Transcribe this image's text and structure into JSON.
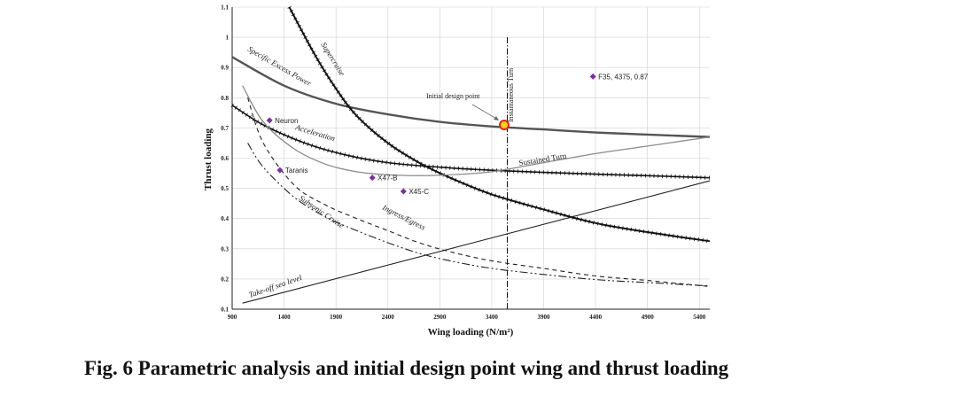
{
  "caption": "Fig. 6  Parametric analysis and initial design point wing and thrust loading",
  "colors": {
    "axis": "#222222",
    "grid": "#d0d0d0",
    "marker": "#7b2fa0",
    "design_fill": "#f5d020",
    "design_ring": "#e0241b"
  },
  "chart_data": {
    "type": "line",
    "title": "",
    "xlabel": "Wing loading (N/m²)",
    "ylabel": "Thrust loading",
    "xlim": [
      900,
      5500
    ],
    "ylim": [
      0.1,
      1.1
    ],
    "x_ticks": [
      900,
      1400,
      1900,
      2400,
      2900,
      3400,
      3900,
      4400,
      4900,
      5400
    ],
    "y_ticks": [
      0.1,
      0.2,
      0.3,
      0.4,
      0.5,
      0.6,
      0.7,
      0.8,
      0.9,
      1,
      1.1
    ],
    "grid": true,
    "series": [
      {
        "name": "Specific Excess Power",
        "x": [
          900,
          1400,
          1900,
          2400,
          2900,
          3400,
          3900,
          4400,
          4900,
          5500
        ],
        "y": [
          0.935,
          0.84,
          0.78,
          0.745,
          0.72,
          0.705,
          0.695,
          0.685,
          0.678,
          0.67
        ]
      },
      {
        "name": "Supercruise",
        "x": [
          1450,
          1700,
          1900,
          2100,
          2400,
          2700,
          3000,
          3400,
          3900,
          4400,
          4900,
          5500
        ],
        "y": [
          1.1,
          0.94,
          0.83,
          0.74,
          0.65,
          0.585,
          0.535,
          0.48,
          0.43,
          0.385,
          0.355,
          0.325
        ]
      },
      {
        "name": "Acceleration",
        "x": [
          900,
          1200,
          1600,
          2000,
          2400,
          2900,
          3400,
          3900,
          4400,
          4900,
          5500
        ],
        "y": [
          0.775,
          0.71,
          0.65,
          0.61,
          0.585,
          0.57,
          0.56,
          0.553,
          0.547,
          0.542,
          0.535
        ]
      },
      {
        "name": "Sustained Turn",
        "x": [
          1000,
          1200,
          1500,
          1800,
          2100,
          2400,
          2700,
          3000,
          3400,
          3900,
          4400,
          4900,
          5500
        ],
        "y": [
          0.84,
          0.72,
          0.63,
          0.58,
          0.555,
          0.545,
          0.542,
          0.545,
          0.555,
          0.585,
          0.615,
          0.64,
          0.67
        ]
      },
      {
        "name": "Ingress/Egress",
        "x": [
          1050,
          1200,
          1500,
          1800,
          2100,
          2400,
          2700,
          3000,
          3400,
          3900,
          4400,
          4900,
          5500
        ],
        "y": [
          0.8,
          0.65,
          0.51,
          0.445,
          0.4,
          0.36,
          0.32,
          0.29,
          0.26,
          0.235,
          0.21,
          0.195,
          0.175
        ]
      },
      {
        "name": "Subsonic Cruise",
        "x": [
          1050,
          1200,
          1500,
          1800,
          2100,
          2400,
          2700,
          3000,
          3400,
          3900,
          4400,
          4900,
          5500
        ],
        "y": [
          0.65,
          0.57,
          0.47,
          0.405,
          0.36,
          0.32,
          0.285,
          0.26,
          0.235,
          0.215,
          0.198,
          0.188,
          0.177
        ]
      },
      {
        "name": "Take-off sea level",
        "x": [
          1000,
          5500
        ],
        "y": [
          0.12,
          0.525
        ]
      }
    ],
    "vertical_line": {
      "name": "Instantaneous Turn",
      "x": 3550
    },
    "points": [
      {
        "label": "Neuron",
        "x": 1260,
        "y": 0.725
      },
      {
        "label": "Taranis",
        "x": 1360,
        "y": 0.56
      },
      {
        "label": "X47-B",
        "x": 2250,
        "y": 0.535
      },
      {
        "label": "X45-C",
        "x": 2550,
        "y": 0.49
      },
      {
        "label": "F35, 4375, 0.87",
        "x": 4375,
        "y": 0.87
      }
    ],
    "design_point": {
      "label": "Initial design point",
      "x": 3520,
      "y": 0.71
    }
  }
}
